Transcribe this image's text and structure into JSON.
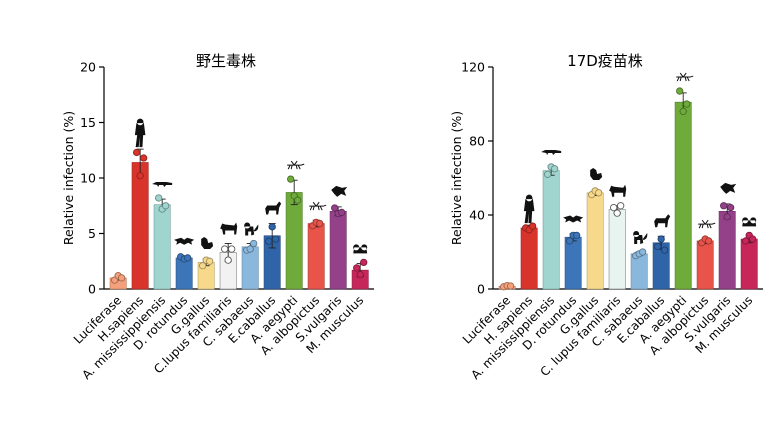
{
  "chart_data": [
    {
      "type": "bar",
      "title": "野生毒株",
      "ylabel": "Relative infection (%)",
      "xlabel": "",
      "ylim": [
        0,
        20
      ],
      "yticks": [
        0,
        5,
        10,
        15,
        20
      ],
      "categories": [
        "Luciferase",
        "H.sapiens",
        "A. mississippiensis",
        "D. rotundus",
        "G.gallus",
        "C.lupus familiaris",
        "C. sabaeus",
        "E.caballus",
        "A. aegypti",
        "A. albopictus",
        "S.vulgaris",
        "M. musculus"
      ],
      "values": [
        1.0,
        11.4,
        7.6,
        2.8,
        2.4,
        3.3,
        3.8,
        4.8,
        8.7,
        5.9,
        7.0,
        1.7
      ],
      "errors": [
        0.2,
        1.2,
        0.5,
        0.2,
        0.3,
        0.8,
        0.3,
        1.1,
        1.1,
        0.3,
        0.4,
        0.6
      ],
      "points": [
        [
          0.8,
          1.2,
          1.0
        ],
        [
          12.3,
          10.2,
          11.8
        ],
        [
          8.2,
          7.2,
          7.5
        ],
        [
          2.9,
          2.7,
          2.8
        ],
        [
          2.1,
          2.6,
          2.5
        ],
        [
          3.6,
          2.6,
          3.6
        ],
        [
          3.5,
          3.6,
          4.1
        ],
        [
          4.3,
          5.6,
          4.5
        ],
        [
          9.9,
          8.4,
          8.0
        ],
        [
          5.7,
          6.0,
          5.9
        ],
        [
          7.3,
          6.8,
          6.9
        ],
        [
          1.9,
          1.3,
          2.4
        ]
      ],
      "colors": [
        "#f4a07a",
        "#d9342b",
        "#9fd5ce",
        "#3d75b9",
        "#f7d98b",
        "#f2f2f2",
        "#8ab8dd",
        "#2f64a8",
        "#6fab3a",
        "#e8534a",
        "#94418a",
        "#c6265a"
      ]
    },
    {
      "type": "bar",
      "title": "17D疫苗株",
      "ylabel": "Relative infection (%)",
      "xlabel": "",
      "ylim": [
        0,
        120
      ],
      "yticks": [
        0,
        40,
        80,
        120
      ],
      "categories": [
        "Luciferase",
        "H. sapiens",
        "A. mississippiensis",
        "D. rotundus",
        "G.gallus",
        "C. lupus familiaris",
        "C. sabaeus",
        "E.caballus",
        "A. aegypti",
        "A. albopictus",
        "S.vulgaris",
        "M. musculus"
      ],
      "values": [
        1.5,
        33,
        64,
        28,
        52,
        43,
        19,
        25,
        101,
        26,
        42,
        27
      ],
      "errors": [
        0.5,
        1.5,
        2.5,
        2,
        1.5,
        2,
        1,
        3.5,
        5,
        1.5,
        4,
        2
      ],
      "points": [
        [
          1.2,
          1.8,
          1.6
        ],
        [
          33,
          32,
          34
        ],
        [
          62,
          66,
          65
        ],
        [
          26,
          29,
          29
        ],
        [
          51,
          53,
          52
        ],
        [
          44,
          41,
          45
        ],
        [
          18,
          19,
          20
        ],
        [
          23,
          27,
          21
        ],
        [
          107,
          96,
          100
        ],
        [
          25,
          27,
          26
        ],
        [
          45,
          39,
          44
        ],
        [
          26,
          29,
          27
        ]
      ],
      "colors": [
        "#f4a07a",
        "#d9342b",
        "#9fd5ce",
        "#3d75b9",
        "#f7d98b",
        "#e8f4f0",
        "#8ab8dd",
        "#2f64a8",
        "#6fab3a",
        "#e8534a",
        "#94418a",
        "#c6265a"
      ]
    }
  ]
}
